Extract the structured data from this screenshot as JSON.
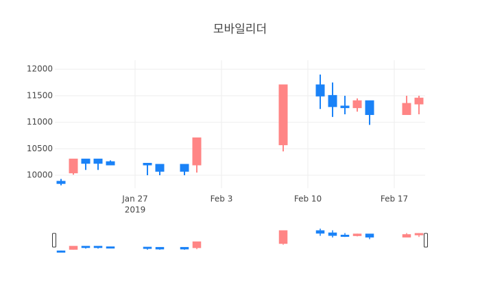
{
  "chart_data": {
    "type": "candlestick",
    "title": "모바일리더",
    "x": [
      "2019-01-21",
      "2019-01-22",
      "2019-01-23",
      "2019-01-24",
      "2019-01-25",
      "2019-01-28",
      "2019-01-29",
      "2019-01-31",
      "2019-02-01",
      "2019-02-08",
      "2019-02-11",
      "2019-02-12",
      "2019-02-13",
      "2019-02-14",
      "2019-02-15",
      "2019-02-18",
      "2019-02-19"
    ],
    "open": [
      9880,
      10050,
      10300,
      10300,
      10250,
      10220,
      10200,
      10200,
      10200,
      10580,
      11700,
      11500,
      11300,
      11280,
      11400,
      11150,
      11350
    ],
    "high": [
      9930,
      10300,
      10300,
      10300,
      10280,
      10230,
      10200,
      10200,
      10700,
      11700,
      11900,
      11750,
      11500,
      11450,
      11400,
      11500,
      11500
    ],
    "low": [
      9810,
      10010,
      10100,
      10100,
      10190,
      10000,
      10000,
      10000,
      10050,
      10450,
      11250,
      11100,
      11150,
      11200,
      10950,
      11150,
      11150
    ],
    "close": [
      9850,
      10300,
      10230,
      10230,
      10200,
      10200,
      10080,
      10080,
      10700,
      11700,
      11500,
      11300,
      11280,
      11400,
      11150,
      11350,
      11450
    ],
    "increasing_color": "#ff8585",
    "decreasing_color": "#1a82f7",
    "xlim": [
      "2019-01-20T12:00:00Z",
      "2019-02-19T12:00:00Z"
    ],
    "xticks": [
      {
        "value": "2019-01-27",
        "label": "Jan 27"
      },
      {
        "value": "2019-02-03",
        "label": "Feb 3"
      },
      {
        "value": "2019-02-10",
        "label": "Feb 10"
      },
      {
        "value": "2019-02-17",
        "label": "Feb 17"
      }
    ],
    "x_year_label": "2019",
    "ylim": [
      9755,
      12170
    ],
    "yticks": [
      10000,
      10500,
      11000,
      11500,
      12000
    ],
    "grid": true,
    "rangeslider": true
  }
}
